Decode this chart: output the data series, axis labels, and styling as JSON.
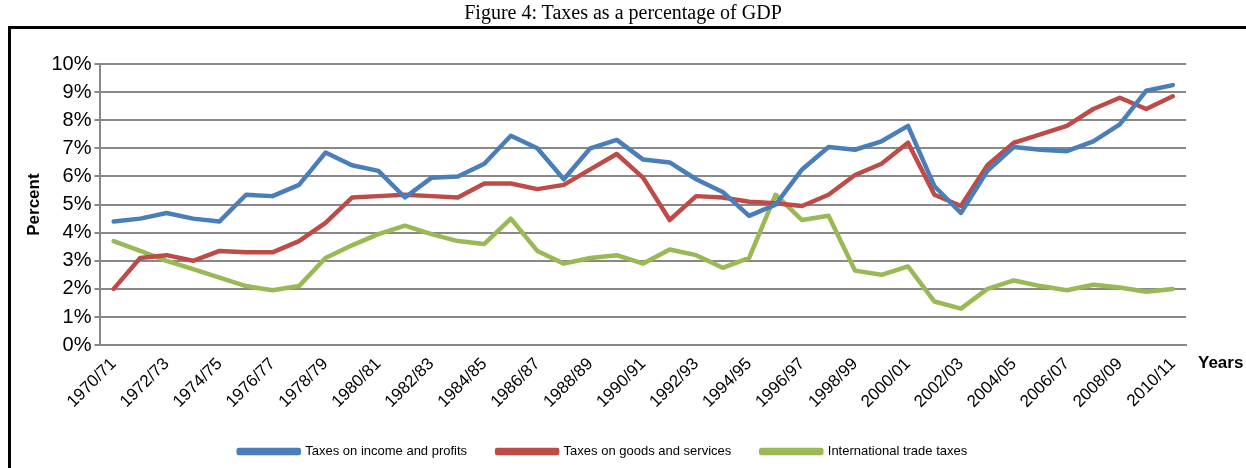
{
  "chart_data": {
    "type": "line",
    "title": "Figure 4: Taxes as a percentage of GDP",
    "xlabel": "Years",
    "ylabel": "Percent",
    "categories": [
      "1970/71",
      null,
      "1972/73",
      null,
      "1974/75",
      null,
      "1976/77",
      null,
      "1978/79",
      null,
      "1980/81",
      null,
      "1982/83",
      null,
      "1984/85",
      null,
      "1986/87",
      null,
      "1988/89",
      null,
      "1990/91",
      null,
      "1992/93",
      null,
      "1994/95",
      null,
      "1996/97",
      null,
      "1998/99",
      null,
      "2000/01",
      null,
      "2002/03",
      null,
      "2004/05",
      null,
      "2006/07",
      null,
      "2008/09",
      null,
      "2010/11"
    ],
    "series": [
      {
        "name": "Taxes on income and profits",
        "color": "#4a7ebb",
        "values": [
          4.4,
          4.5,
          4.7,
          4.5,
          4.4,
          5.35,
          5.3,
          5.7,
          6.85,
          6.4,
          6.2,
          5.25,
          5.95,
          6.0,
          6.45,
          7.45,
          7.0,
          5.9,
          7.0,
          7.3,
          6.6,
          6.5,
          5.9,
          5.45,
          4.6,
          5.0,
          6.25,
          7.05,
          6.95,
          7.25,
          7.8,
          5.65,
          4.7,
          6.2,
          7.05,
          6.95,
          6.9,
          7.25,
          7.85,
          9.05,
          9.25
        ]
      },
      {
        "name": "Taxes on goods and services",
        "color": "#be4b48",
        "values": [
          2.0,
          3.1,
          3.2,
          3.0,
          3.35,
          3.3,
          3.3,
          3.7,
          4.35,
          5.25,
          5.3,
          5.35,
          5.3,
          5.25,
          5.75,
          5.75,
          5.55,
          5.7,
          6.25,
          6.8,
          5.95,
          4.45,
          5.3,
          5.25,
          5.1,
          5.05,
          4.95,
          5.35,
          6.05,
          6.45,
          7.2,
          5.35,
          4.95,
          6.4,
          7.2,
          7.5,
          7.8,
          8.4,
          8.8,
          8.4,
          8.85
        ]
      },
      {
        "name": "International trade taxes",
        "color": "#98b954",
        "values": [
          3.7,
          3.35,
          3.0,
          2.7,
          2.4,
          2.1,
          1.95,
          2.1,
          3.1,
          3.55,
          3.95,
          4.25,
          3.95,
          3.7,
          3.6,
          4.5,
          3.35,
          2.9,
          3.1,
          3.2,
          2.9,
          3.4,
          3.2,
          2.75,
          3.1,
          5.35,
          4.45,
          4.6,
          2.65,
          2.5,
          2.8,
          1.55,
          1.3,
          2.0,
          2.3,
          2.1,
          1.95,
          2.15,
          2.05,
          1.9,
          2.0
        ]
      }
    ],
    "ylim": [
      0,
      10
    ],
    "yticks": [
      {
        "value": 0,
        "label": "0%"
      },
      {
        "value": 1,
        "label": "1%"
      },
      {
        "value": 2,
        "label": "2%"
      },
      {
        "value": 3,
        "label": "3%"
      },
      {
        "value": 4,
        "label": "4%"
      },
      {
        "value": 5,
        "label": "5%"
      },
      {
        "value": 6,
        "label": "6%"
      },
      {
        "value": 7,
        "label": "7%"
      },
      {
        "value": 8,
        "label": "8%"
      },
      {
        "value": 9,
        "label": "9%"
      },
      {
        "value": 10,
        "label": "10%"
      }
    ],
    "grid": "y",
    "legend": "bottom",
    "marker": "none",
    "line_style": "solid"
  }
}
